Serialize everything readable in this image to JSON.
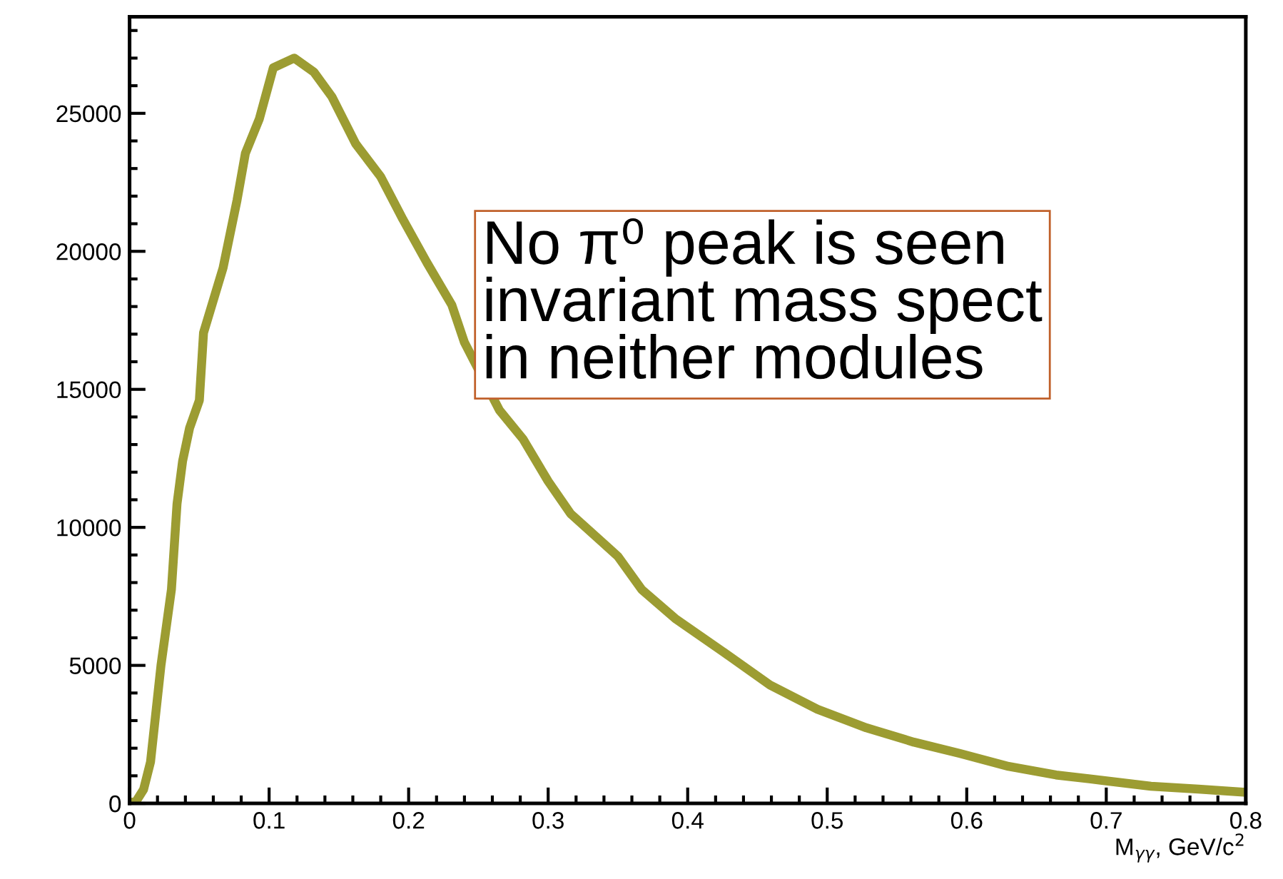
{
  "chart_data": {
    "type": "line",
    "xlabel": "M$_{γγ}$, GeV/c$^{2}$",
    "x": [
      0.0,
      0.005,
      0.01,
      0.015,
      0.0225,
      0.03,
      0.034,
      0.038,
      0.043,
      0.05,
      0.053,
      0.067,
      0.077,
      0.083,
      0.093,
      0.103,
      0.118,
      0.132,
      0.145,
      0.162,
      0.18,
      0.196,
      0.213,
      0.231,
      0.24,
      0.265,
      0.282,
      0.3,
      0.316,
      0.35,
      0.367,
      0.391,
      0.426,
      0.459,
      0.493,
      0.528,
      0.562,
      0.595,
      0.63,
      0.664,
      0.698,
      0.732,
      0.766,
      0.797
    ],
    "values": [
      0,
      100,
      500,
      1500,
      5000,
      7750,
      10850,
      12400,
      13600,
      14600,
      17050,
      19400,
      21850,
      23550,
      24800,
      26650,
      27000,
      26500,
      25600,
      23900,
      22700,
      21150,
      19600,
      18050,
      16700,
      14250,
      13200,
      11670,
      10500,
      8950,
      7750,
      6700,
      5470,
      4290,
      3410,
      2740,
      2220,
      1810,
      1340,
      1030,
      830,
      620,
      520,
      410
    ],
    "color": "#9c9c32",
    "xlim": [
      0,
      0.8
    ],
    "ylim": [
      0,
      28500
    ],
    "xticks": [
      0,
      0.1,
      0.2,
      0.3,
      0.4,
      0.5,
      0.6,
      0.7,
      0.8
    ],
    "yticks": [
      0,
      5000,
      10000,
      15000,
      20000,
      25000
    ],
    "marker": "none",
    "line_style": "solid",
    "grid": false,
    "legend": false,
    "annotations": [
      "No π⁰ peak is seen\ninvariant mass spect\nin neither modules"
    ]
  }
}
